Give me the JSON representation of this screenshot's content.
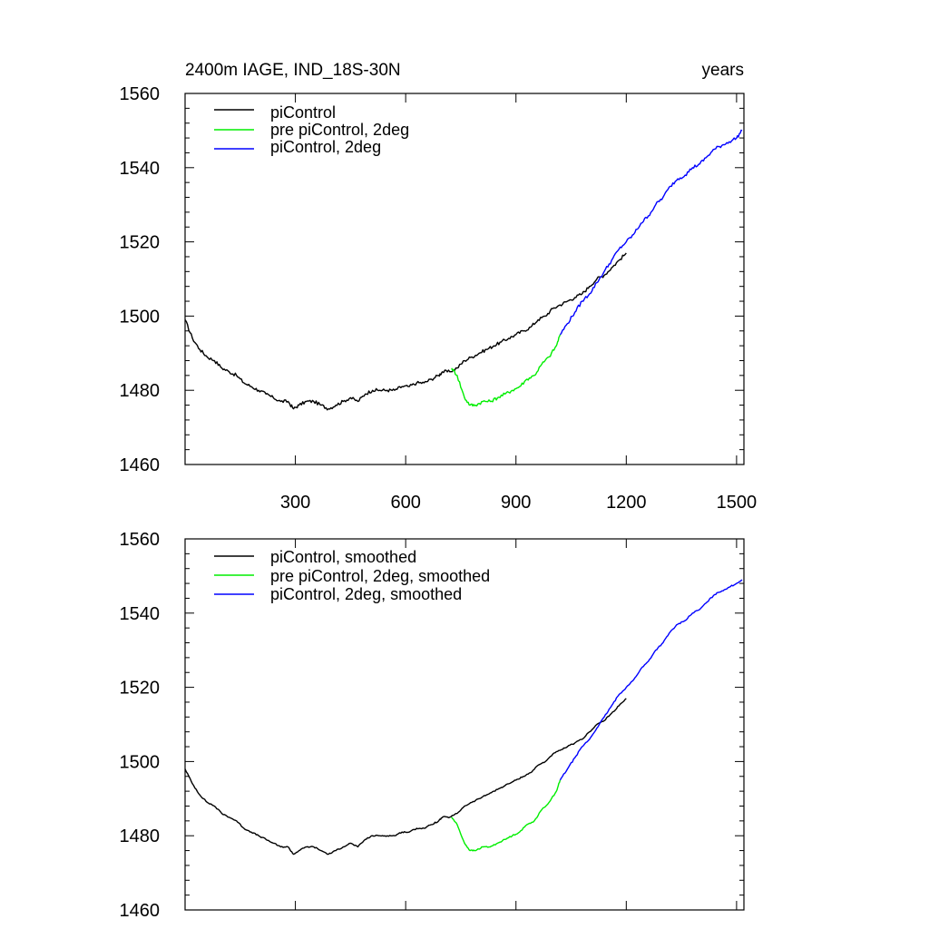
{
  "chart_data": [
    {
      "type": "line",
      "title_left": "2400m IAGE, IND_18S-30N",
      "title_right": "years",
      "xlim": [
        0,
        1520
      ],
      "ylim": [
        1460,
        1560
      ],
      "x_ticks": [
        300,
        600,
        900,
        1200,
        1500
      ],
      "x_tick_labels": [
        "300",
        "600",
        "900",
        "1200",
        "1500"
      ],
      "y_ticks": [
        1460,
        1480,
        1500,
        1520,
        1540,
        1560
      ],
      "y_tick_labels": [
        "1460",
        "1480",
        "1500",
        "1520",
        "1540",
        "1560"
      ],
      "legend_position": "top-left",
      "series": [
        {
          "name": "piControl",
          "color": "#000000",
          "x": [
            0,
            20,
            40,
            60,
            80,
            100,
            120,
            140,
            160,
            180,
            200,
            220,
            240,
            260,
            280,
            295,
            310,
            330,
            350,
            370,
            390,
            410,
            430,
            450,
            470,
            490,
            510,
            530,
            550,
            570,
            590,
            610,
            630,
            650,
            670,
            690,
            700,
            720,
            740,
            760,
            780,
            800,
            820,
            840,
            860,
            880,
            900,
            920,
            940,
            960,
            980,
            1000,
            1020,
            1040,
            1060,
            1080,
            1100,
            1120,
            1140,
            1160,
            1180,
            1200
          ],
          "y": [
            1499,
            1494,
            1491,
            1489,
            1488,
            1486,
            1485,
            1484,
            1482,
            1481,
            1480,
            1479,
            1478,
            1477,
            1477,
            1475,
            1476,
            1477,
            1477,
            1476,
            1475,
            1476,
            1477,
            1478,
            1477,
            1479,
            1480,
            1480,
            1480,
            1480,
            1481,
            1481,
            1482,
            1482,
            1483,
            1484,
            1485,
            1485,
            1486,
            1488,
            1489,
            1490,
            1491,
            1492,
            1493,
            1494,
            1495,
            1496,
            1497,
            1499,
            1500,
            1502,
            1503,
            1504,
            1505,
            1506,
            1508,
            1510,
            1511,
            1513,
            1515,
            1517
          ]
        },
        {
          "name": "pre piControl, 2deg",
          "color": "#00ee00",
          "x": [
            725,
            740,
            760,
            775,
            790,
            810,
            830,
            850,
            870,
            890,
            910,
            930,
            950,
            970,
            990,
            1010,
            1020
          ],
          "y": [
            1486,
            1484,
            1478,
            1476,
            1476,
            1477,
            1477,
            1478,
            1479,
            1480,
            1481,
            1483,
            1484,
            1487,
            1489,
            1492,
            1495
          ]
        },
        {
          "name": "piControl, 2deg",
          "color": "#0000ff",
          "x": [
            1020,
            1040,
            1060,
            1080,
            1100,
            1120,
            1140,
            1160,
            1180,
            1200,
            1220,
            1240,
            1260,
            1280,
            1300,
            1320,
            1340,
            1360,
            1380,
            1400,
            1420,
            1440,
            1460,
            1480,
            1500,
            1515
          ],
          "y": [
            1495,
            1498,
            1501,
            1504,
            1506,
            1509,
            1512,
            1515,
            1518,
            1520,
            1522,
            1525,
            1527,
            1530,
            1532,
            1535,
            1537,
            1538,
            1540,
            1541,
            1543,
            1545,
            1546,
            1547,
            1548,
            1550
          ]
        }
      ]
    },
    {
      "type": "line",
      "xlim": [
        0,
        1520
      ],
      "ylim": [
        1460,
        1560
      ],
      "x_ticks": [
        300,
        600,
        900,
        1200,
        1500
      ],
      "y_ticks": [
        1460,
        1480,
        1500,
        1520,
        1540,
        1560
      ],
      "y_tick_labels": [
        "1460",
        "1480",
        "1500",
        "1520",
        "1540",
        "1560"
      ],
      "legend_position": "top-left",
      "series": [
        {
          "name": "piControl, smoothed",
          "color": "#000000",
          "x": [
            0,
            20,
            40,
            60,
            80,
            100,
            120,
            140,
            160,
            180,
            200,
            220,
            240,
            260,
            280,
            295,
            310,
            330,
            350,
            370,
            390,
            410,
            430,
            450,
            470,
            490,
            510,
            530,
            550,
            570,
            590,
            610,
            630,
            650,
            670,
            690,
            700,
            720,
            740,
            760,
            780,
            800,
            820,
            840,
            860,
            880,
            900,
            920,
            940,
            960,
            980,
            1000,
            1020,
            1040,
            1060,
            1080,
            1100,
            1120,
            1140,
            1160,
            1180,
            1200
          ],
          "y": [
            1498,
            1494,
            1491,
            1489,
            1488,
            1486,
            1485,
            1484,
            1482,
            1481,
            1480,
            1479,
            1478,
            1477,
            1477,
            1475,
            1476,
            1477,
            1477,
            1476,
            1475,
            1476,
            1477,
            1478,
            1477,
            1479,
            1480,
            1480,
            1480,
            1480,
            1481,
            1481,
            1482,
            1482,
            1483,
            1484,
            1485,
            1485,
            1486,
            1488,
            1489,
            1490,
            1491,
            1492,
            1493,
            1494,
            1495,
            1496,
            1497,
            1499,
            1500,
            1502,
            1503,
            1504,
            1505,
            1506,
            1508,
            1510,
            1511,
            1513,
            1515,
            1517
          ]
        },
        {
          "name": "pre piControl, 2deg, smoothed",
          "color": "#00ee00",
          "x": [
            725,
            740,
            760,
            775,
            790,
            810,
            830,
            850,
            870,
            890,
            910,
            930,
            950,
            970,
            990,
            1010,
            1020
          ],
          "y": [
            1485,
            1483,
            1478,
            1476,
            1476,
            1477,
            1477,
            1478,
            1479,
            1480,
            1481,
            1483,
            1484,
            1487,
            1489,
            1492,
            1495
          ]
        },
        {
          "name": "piControl, 2deg, smoothed",
          "color": "#0000ff",
          "x": [
            1020,
            1040,
            1060,
            1080,
            1100,
            1120,
            1140,
            1160,
            1180,
            1200,
            1220,
            1240,
            1260,
            1280,
            1300,
            1320,
            1340,
            1360,
            1380,
            1400,
            1420,
            1440,
            1460,
            1480,
            1500,
            1515
          ],
          "y": [
            1495,
            1498,
            1501,
            1504,
            1506,
            1509,
            1512,
            1515,
            1518,
            1520,
            1522,
            1525,
            1527,
            1530,
            1532,
            1535,
            1537,
            1538,
            1540,
            1541,
            1543,
            1545,
            1546,
            1547,
            1548,
            1549
          ]
        }
      ]
    }
  ]
}
